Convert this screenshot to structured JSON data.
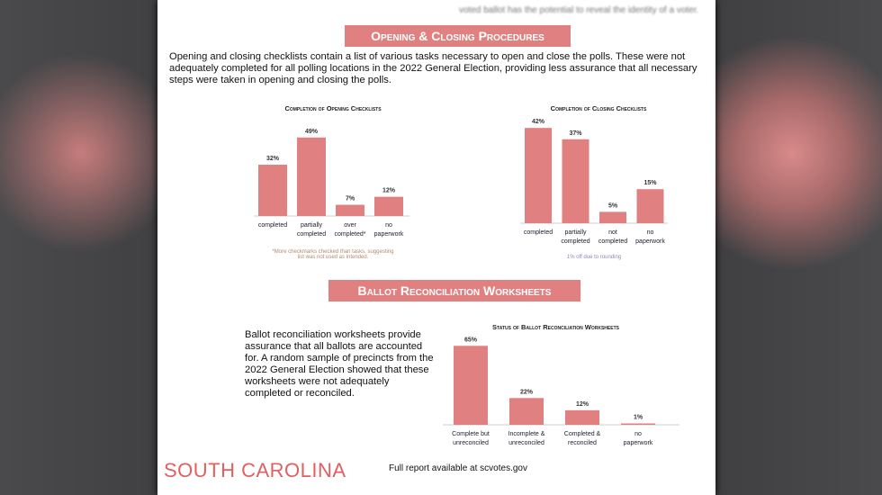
{
  "page": {
    "top_fragment": "voted ballot has the potential to reveal the identity of a voter.",
    "section1_title": "Opening & Closing Procedures",
    "section1_text": "Opening and closing checklists contain a list of various tasks necessary to open and close the polls. These were not adequately completed for all polling locations in the 2022 General Election, providing less assurance that all necessary steps were taken in opening and closing the polls.",
    "section2_title": "Ballot Reconciliation Worksheets",
    "section2_text": "Ballot reconciliation worksheets provide assurance that all ballots are accounted for. A random sample of precincts from the 2022 General Election showed that these worksheets were not adequately completed or reconciled.",
    "brand": "SOUTH CAROLINA",
    "footer": "Full report available at scvotes.gov"
  },
  "colors": {
    "bar": "#e08080",
    "banner": "#e08080",
    "brand": "#e06060"
  },
  "chart_data": [
    {
      "type": "bar",
      "title": "Completion of Opening Checklists",
      "categories": [
        "completed",
        "partially completed",
        "over completed*",
        "no paperwork"
      ],
      "values": [
        32,
        49,
        7,
        12
      ],
      "labels": [
        "32%",
        "49%",
        "7%",
        "12%"
      ],
      "note": "*More checkmarks checked than tasks, suggesting list was not used as intended."
    },
    {
      "type": "bar",
      "title": "Completion of Closing Checklists",
      "categories": [
        "completed",
        "partially completed",
        "not completed",
        "no paperwork"
      ],
      "values": [
        42,
        37,
        5,
        15
      ],
      "labels": [
        "42%",
        "37%",
        "5%",
        "15%"
      ],
      "note": "1% off due to rounding"
    },
    {
      "type": "bar",
      "title": "Status of Ballot Reconciliation Worksheets",
      "categories": [
        "Complete but unreconciled",
        "Incomplete & unreconciled",
        "Completed & reconciled",
        "no paperwork"
      ],
      "values": [
        65,
        22,
        12,
        1
      ],
      "labels": [
        "65%",
        "22%",
        "12%",
        "1%"
      ]
    }
  ]
}
